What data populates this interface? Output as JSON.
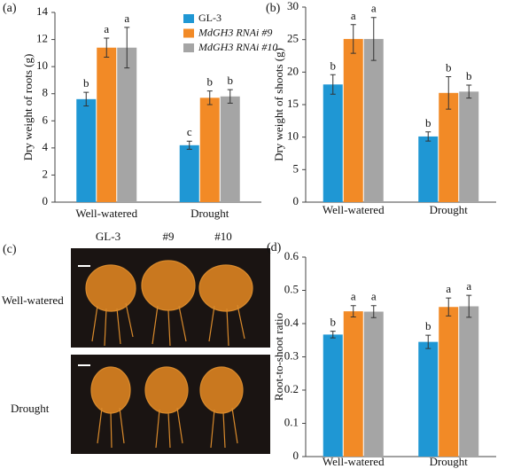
{
  "chart_data": [
    {
      "type": "bar",
      "panel": "(a)",
      "ylabel": "Dry weight of roots (g)",
      "categories": [
        "Well-watered",
        "Drought"
      ],
      "ylim": [
        0,
        14
      ],
      "yticks": [
        0,
        2,
        4,
        6,
        8,
        10,
        12,
        14
      ],
      "legend": "upper-right",
      "series": [
        {
          "name": "GL-3",
          "color": "#1f97d4",
          "values": [
            7.6,
            4.2
          ],
          "errors": [
            0.5,
            0.3
          ],
          "letters": [
            "b",
            "c"
          ]
        },
        {
          "name": "MdGH3 RNAi #9",
          "color": "#f28a26",
          "values": [
            11.4,
            7.7
          ],
          "errors": [
            0.7,
            0.5
          ],
          "letters": [
            "a",
            "b"
          ]
        },
        {
          "name": "MdGH3 RNAi #10",
          "color": "#a5a5a5",
          "values": [
            11.4,
            7.8
          ],
          "errors": [
            1.5,
            0.5
          ],
          "letters": [
            "a",
            "b"
          ]
        }
      ]
    },
    {
      "type": "bar",
      "panel": "(b)",
      "ylabel": "Dry weight of shoots (g)",
      "categories": [
        "Well-watered",
        "Drought"
      ],
      "ylim": [
        0,
        30
      ],
      "yticks": [
        0,
        5,
        10,
        15,
        20,
        25,
        30
      ],
      "series": [
        {
          "color": "#1f97d4",
          "values": [
            18.1,
            10.1
          ],
          "errors": [
            1.5,
            0.7
          ],
          "letters": [
            "b",
            "b"
          ]
        },
        {
          "color": "#f28a26",
          "values": [
            25.1,
            16.8
          ],
          "errors": [
            2.2,
            2.5
          ],
          "letters": [
            "a",
            "b"
          ]
        },
        {
          "color": "#a5a5a5",
          "values": [
            25.1,
            17.0
          ],
          "errors": [
            3.3,
            1.0
          ],
          "letters": [
            "a",
            "b"
          ]
        }
      ]
    },
    {
      "type": "bar",
      "panel": "(d)",
      "ylabel": "Root-to-shoot ratio",
      "categories": [
        "Well-watered",
        "Drought"
      ],
      "ylim": [
        0,
        0.6
      ],
      "yticks": [
        0,
        0.1,
        0.2,
        0.3,
        0.4,
        0.5,
        0.6
      ],
      "series": [
        {
          "color": "#1f97d4",
          "values": [
            0.367,
            0.345
          ],
          "errors": [
            0.01,
            0.02
          ],
          "letters": [
            "b",
            "b"
          ]
        },
        {
          "color": "#f28a26",
          "values": [
            0.437,
            0.45
          ],
          "errors": [
            0.017,
            0.027
          ],
          "letters": [
            "a",
            "a"
          ]
        },
        {
          "color": "#a5a5a5",
          "values": [
            0.436,
            0.452
          ],
          "errors": [
            0.018,
            0.033
          ],
          "letters": [
            "a",
            "a"
          ]
        }
      ]
    }
  ],
  "photo_panel": {
    "panel": "(c)",
    "columns": [
      "GL-3",
      "#9",
      "#10"
    ],
    "rows": [
      "Well-watered",
      "Drought"
    ]
  }
}
